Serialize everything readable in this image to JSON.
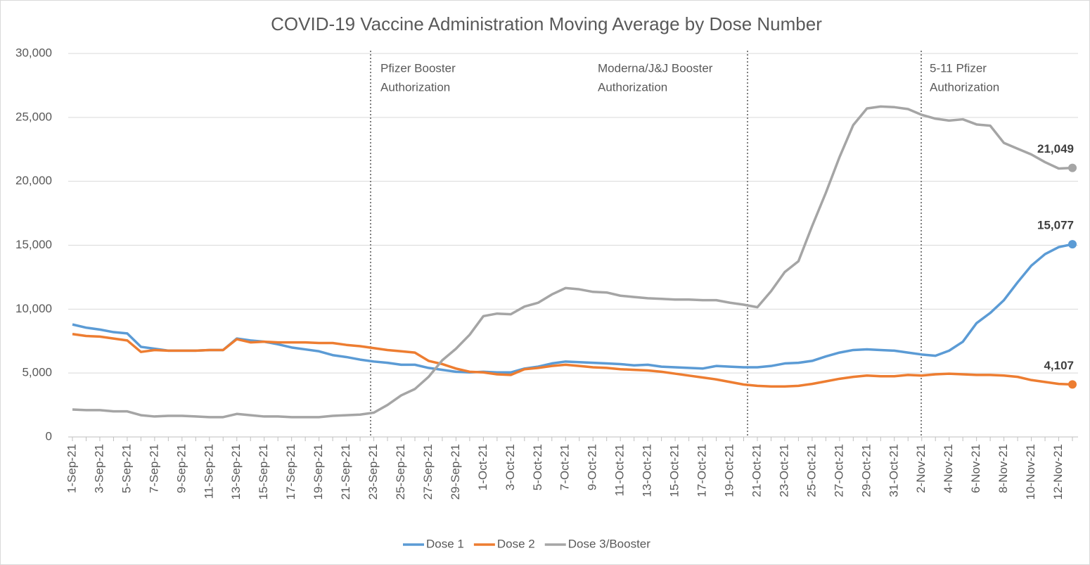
{
  "chart_data": {
    "type": "line",
    "title": "COVID-19 Vaccine Administration Moving Average by Dose Number",
    "categories": [
      "1-Sep-21",
      null,
      "3-Sep-21",
      null,
      "5-Sep-21",
      null,
      "7-Sep-21",
      null,
      "9-Sep-21",
      null,
      "11-Sep-21",
      null,
      "13-Sep-21",
      null,
      "15-Sep-21",
      null,
      "17-Sep-21",
      null,
      "19-Sep-21",
      null,
      "21-Sep-21",
      null,
      "23-Sep-21",
      null,
      "25-Sep-21",
      null,
      "27-Sep-21",
      null,
      "29-Sep-21",
      null,
      "1-Oct-21",
      null,
      "3-Oct-21",
      null,
      "5-Oct-21",
      null,
      "7-Oct-21",
      null,
      "9-Oct-21",
      null,
      "11-Oct-21",
      null,
      "13-Oct-21",
      null,
      "15-Oct-21",
      null,
      "17-Oct-21",
      null,
      "19-Oct-21",
      null,
      "21-Oct-21",
      null,
      "23-Oct-21",
      null,
      "25-Oct-21",
      null,
      "27-Oct-21",
      null,
      "29-Oct-21",
      null,
      "31-Oct-21",
      null,
      "2-Nov-21",
      null,
      "4-Nov-21",
      null,
      "6-Nov-21",
      null,
      "8-Nov-21",
      null,
      "10-Nov-21",
      null,
      "12-Nov-21",
      null
    ],
    "series": [
      {
        "name": "Dose 1",
        "color": "#5b9bd5",
        "values": [
          8800,
          8550,
          8400,
          8200,
          8100,
          7050,
          6900,
          6750,
          6750,
          6750,
          6800,
          6800,
          7700,
          7550,
          7450,
          7250,
          7000,
          6850,
          6700,
          6400,
          6250,
          6050,
          5900,
          5800,
          5650,
          5650,
          5400,
          5250,
          5100,
          5050,
          5100,
          5050,
          5050,
          5350,
          5500,
          5750,
          5900,
          5850,
          5800,
          5750,
          5700,
          5600,
          5650,
          5500,
          5450,
          5400,
          5350,
          5550,
          5500,
          5450,
          5450,
          5550,
          5750,
          5800,
          5950,
          6300,
          6600,
          6800,
          6850,
          6800,
          6750,
          6600,
          6450,
          6350,
          6750,
          7450,
          8900,
          9700,
          10700,
          12100,
          13400,
          14300,
          14850,
          15077
        ],
        "value_labels": {
          "73": "15,077"
        }
      },
      {
        "name": "Dose 2",
        "color": "#ed7d31",
        "values": [
          8050,
          7900,
          7850,
          7700,
          7550,
          6650,
          6800,
          6750,
          6750,
          6750,
          6800,
          6800,
          7650,
          7400,
          7450,
          7400,
          7400,
          7400,
          7350,
          7350,
          7200,
          7100,
          6950,
          6800,
          6700,
          6600,
          5950,
          5700,
          5350,
          5100,
          5050,
          4900,
          4850,
          5300,
          5400,
          5550,
          5650,
          5550,
          5450,
          5400,
          5300,
          5250,
          5200,
          5100,
          4950,
          4800,
          4650,
          4500,
          4300,
          4100,
          4000,
          3950,
          3950,
          4000,
          4150,
          4350,
          4550,
          4700,
          4800,
          4750,
          4750,
          4850,
          4800,
          4900,
          4950,
          4900,
          4850,
          4850,
          4800,
          4700,
          4450,
          4300,
          4150,
          4107
        ],
        "value_labels": {
          "73": "4,107"
        }
      },
      {
        "name": "Dose 3/Booster",
        "color": "#a5a5a5",
        "values": [
          2150,
          2100,
          2100,
          2000,
          2000,
          1700,
          1600,
          1650,
          1650,
          1600,
          1550,
          1550,
          1800,
          1700,
          1600,
          1600,
          1550,
          1550,
          1550,
          1650,
          1700,
          1750,
          1900,
          2500,
          3250,
          3750,
          4700,
          6000,
          6900,
          8000,
          9450,
          9650,
          9600,
          10200,
          10500,
          11150,
          11650,
          11550,
          11350,
          11300,
          11050,
          10950,
          10850,
          10800,
          10750,
          10750,
          10700,
          10700,
          10500,
          10350,
          10150,
          11400,
          12900,
          13750,
          16500,
          19100,
          21900,
          24400,
          25700,
          25850,
          25800,
          25650,
          25200,
          24900,
          24750,
          24850,
          24450,
          24350,
          23000,
          22550,
          22100,
          21500,
          21000,
          21049
        ],
        "value_labels": {
          "73": "21,049"
        }
      }
    ],
    "ylim": [
      0,
      30000
    ],
    "yticks": [
      0,
      {
        "value": 5000,
        "label": "5,000"
      },
      {
        "value": 10000,
        "label": "10,000"
      },
      {
        "value": 15000,
        "label": "15,000"
      },
      {
        "value": 20000,
        "label": "20,000"
      },
      {
        "value": 25000,
        "label": "25,000"
      },
      {
        "value": 30000,
        "label": "30,000"
      }
    ],
    "grid": true,
    "legend": "bottom",
    "annotations": [
      {
        "text": [
          "Pfizer Booster",
          "Authorization"
        ]
      },
      {
        "text": [
          "Moderna/J&J Booster",
          "Authorization"
        ]
      },
      {
        "text": [
          "5-11 Pfizer",
          "Authorization"
        ]
      }
    ]
  }
}
